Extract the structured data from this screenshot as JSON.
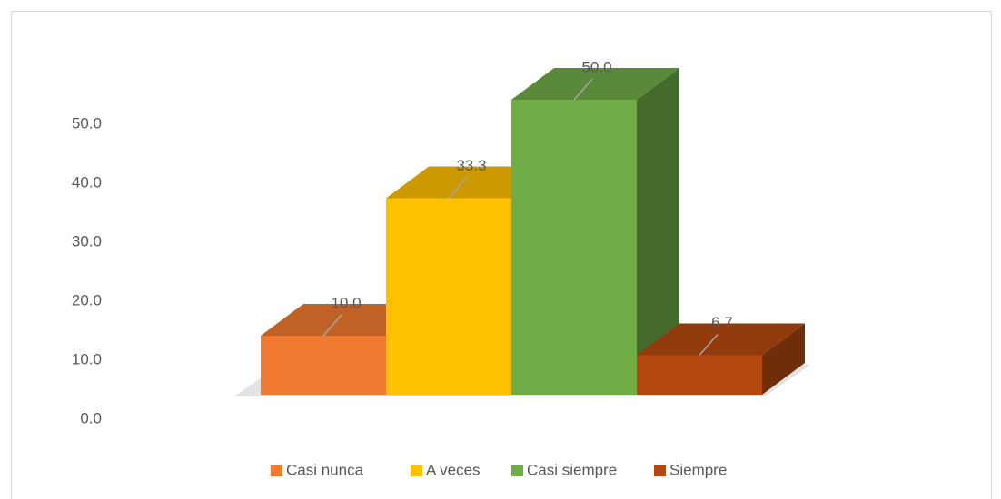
{
  "chart_data": {
    "type": "bar3d",
    "categories": [
      null
    ],
    "series": [
      {
        "name": "Casi nunca",
        "color": "#f07a30",
        "values": [
          10
        ],
        "value_labels": [
          "10.0"
        ]
      },
      {
        "name": "A veces",
        "color": "#ffc000",
        "values": [
          33.3
        ],
        "value_labels": [
          "33.3"
        ]
      },
      {
        "name": "Casi siempre",
        "color": "#70ad47",
        "values": [
          50
        ],
        "value_labels": [
          "50.0"
        ]
      },
      {
        "name": "Siempre",
        "color": "#b5480f",
        "values": [
          6.7
        ],
        "value_labels": [
          "6.7"
        ]
      }
    ],
    "ylim": [
      0,
      50
    ],
    "yticks": [
      {
        "value": 0,
        "label": "0.0"
      },
      {
        "value": 10,
        "label": "10.0"
      },
      {
        "value": 20,
        "label": "20.0"
      },
      {
        "value": 30,
        "label": "30.0"
      },
      {
        "value": 40,
        "label": "40.0"
      },
      {
        "value": 50,
        "label": "50.0"
      }
    ],
    "grid": false,
    "legend": "bottom"
  }
}
